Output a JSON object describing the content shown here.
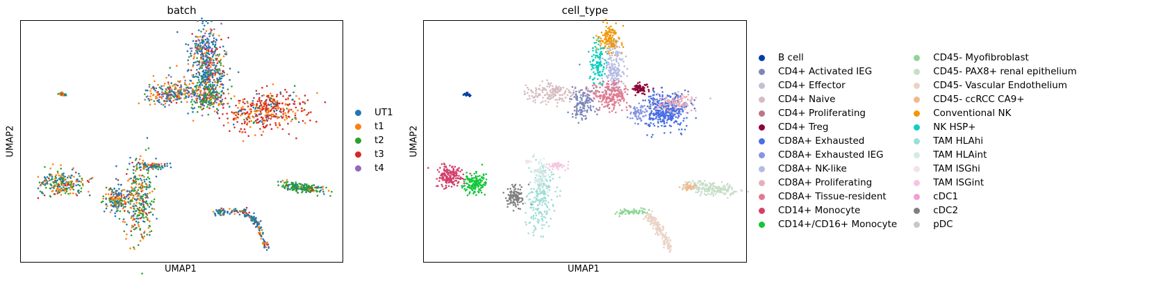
{
  "chart_data": [
    {
      "type": "scatter",
      "title": "batch",
      "xlabel": "UMAP1",
      "ylabel": "UMAP2",
      "grid": false,
      "legend_position": "right",
      "legend": [
        {
          "label": "UT1",
          "color": "#1f77b4"
        },
        {
          "label": "t1",
          "color": "#ff7f0e"
        },
        {
          "label": "t2",
          "color": "#2ca02c"
        },
        {
          "label": "t3",
          "color": "#d62728"
        },
        {
          "label": "t4",
          "color": "#9467bd"
        }
      ]
    },
    {
      "type": "scatter",
      "title": "cell_type",
      "xlabel": "UMAP1",
      "ylabel": "UMAP2",
      "grid": false,
      "legend_position": "right",
      "legend_columns": 2,
      "legend": [
        {
          "label": "B cell",
          "color": "#023fa5"
        },
        {
          "label": "CD4+ Activated IEG",
          "color": "#7d87b9"
        },
        {
          "label": "CD4+ Effector",
          "color": "#bec1d4"
        },
        {
          "label": "CD4+ Naive",
          "color": "#d6bcc0"
        },
        {
          "label": "CD4+ Proliferating",
          "color": "#bb7784"
        },
        {
          "label": "CD4+ Treg",
          "color": "#8e063b"
        },
        {
          "label": "CD8A+ Exhausted",
          "color": "#4a6fe3"
        },
        {
          "label": "CD8A+ Exhausted IEG",
          "color": "#8595e1"
        },
        {
          "label": "CD8A+ NK-like",
          "color": "#b5bbe3"
        },
        {
          "label": "CD8A+ Proliferating",
          "color": "#e6afb9"
        },
        {
          "label": "CD8A+ Tissue-resident",
          "color": "#e07b91"
        },
        {
          "label": "CD14+ Monocyte",
          "color": "#d33f6a"
        },
        {
          "label": "CD14+/CD16+ Monocyte",
          "color": "#11c638"
        },
        {
          "label": "CD45- Myofibroblast",
          "color": "#8dd593"
        },
        {
          "label": "CD45- PAX8+ renal epithelium",
          "color": "#c6dec7"
        },
        {
          "label": "CD45- Vascular Endothelium",
          "color": "#ead3c6"
        },
        {
          "label": "CD45- ccRCC CA9+",
          "color": "#f0b98d"
        },
        {
          "label": "Conventional NK",
          "color": "#ef9708"
        },
        {
          "label": "NK HSP+",
          "color": "#0fcfc0"
        },
        {
          "label": "TAM HLAhi",
          "color": "#9cded6"
        },
        {
          "label": "TAM HLAint",
          "color": "#d5eae7"
        },
        {
          "label": "TAM ISGhi",
          "color": "#f3e1eb"
        },
        {
          "label": "TAM ISGint",
          "color": "#f6c4e1"
        },
        {
          "label": "cDC1",
          "color": "#f79cd4"
        },
        {
          "label": "cDC2",
          "color": "#7f7f7f"
        },
        {
          "label": "pDC",
          "color": "#c7c7c7"
        }
      ]
    }
  ]
}
